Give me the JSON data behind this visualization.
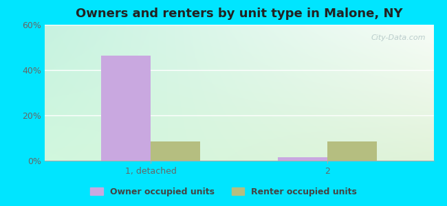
{
  "title": "Owners and renters by unit type in Malone, NY",
  "categories": [
    "1, detached",
    "2"
  ],
  "owner_values": [
    46.5,
    1.5
  ],
  "renter_values": [
    8.5,
    8.5
  ],
  "owner_color": "#c9a8e0",
  "renter_color": "#b5be80",
  "ylim": [
    0,
    60
  ],
  "yticks": [
    0,
    20,
    40,
    60
  ],
  "yticklabels": [
    "0%",
    "20%",
    "40%",
    "60%"
  ],
  "outer_bg": "#00e5ff",
  "title_fontsize": 13,
  "bar_width": 0.28,
  "watermark": "City-Data.com",
  "legend_owner": "Owner occupied units",
  "legend_renter": "Renter occupied units",
  "group_positions": [
    0.22,
    0.72
  ]
}
